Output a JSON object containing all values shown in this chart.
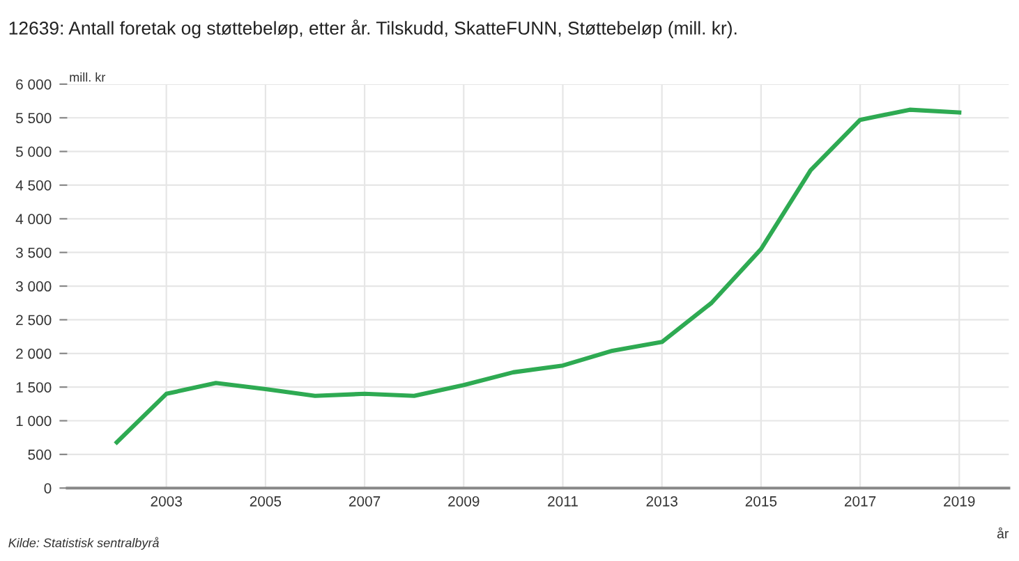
{
  "chart_data": {
    "type": "line",
    "title": "12639: Antall foretak og støttebeløp, etter år. Tilskudd, SkatteFUNN, Støttebeløp (mill. kr).",
    "ylabel": "mill. kr",
    "xlabel": "år",
    "annotations": [
      "Kilde: Statistisk sentralbyrå"
    ],
    "x": [
      2002,
      2003,
      2004,
      2005,
      2006,
      2007,
      2008,
      2009,
      2010,
      2011,
      2012,
      2013,
      2014,
      2015,
      2016,
      2017,
      2018,
      2019
    ],
    "series": [
      {
        "color": "#2eaa52",
        "values": [
          680,
          1400,
          1560,
          1470,
          1370,
          1400,
          1370,
          1530,
          1720,
          1820,
          2040,
          2170,
          2750,
          3550,
          4720,
          5470,
          5620,
          5580
        ]
      }
    ],
    "xlim": [
      2001,
      2020
    ],
    "xticks": [
      2003,
      2005,
      2007,
      2009,
      2011,
      2013,
      2015,
      2017,
      2019
    ],
    "ylim": [
      0,
      6000
    ],
    "yticks": [
      0,
      500,
      {
        "value": 1000,
        "label": "1 000"
      },
      {
        "value": 1500,
        "label": "1 500"
      },
      {
        "value": 2000,
        "label": "2 000"
      },
      {
        "value": 2500,
        "label": "2 500"
      },
      {
        "value": 3000,
        "label": "3 000"
      },
      {
        "value": 3500,
        "label": "3 500"
      },
      {
        "value": 4000,
        "label": "4 000"
      },
      {
        "value": 4500,
        "label": "4 500"
      },
      {
        "value": 5000,
        "label": "5 000"
      },
      {
        "value": 5500,
        "label": "5 500"
      },
      {
        "value": 6000,
        "label": "6 000"
      }
    ],
    "grid": true,
    "legend": false,
    "marker": "none",
    "line_style": "solid"
  }
}
